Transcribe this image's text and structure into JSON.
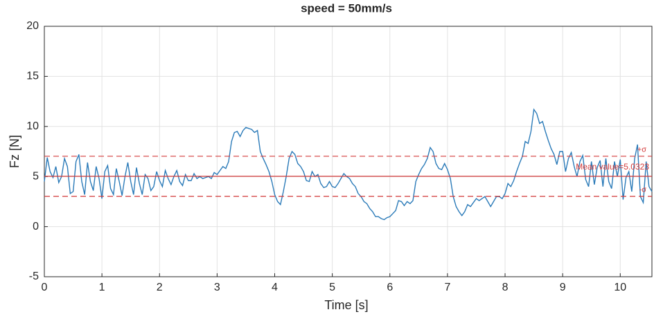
{
  "chart_data": {
    "type": "line",
    "title": "speed = 50mm/s",
    "xlabel": "Time [s]",
    "ylabel": "Fz [N]",
    "x": [
      0,
      0.05,
      0.1,
      0.15,
      0.2,
      0.25,
      0.3,
      0.35,
      0.4,
      0.45,
      0.5,
      0.55,
      0.6,
      0.65,
      0.7,
      0.75,
      0.8,
      0.85,
      0.9,
      0.95,
      1,
      1.05,
      1.1,
      1.15,
      1.2,
      1.25,
      1.3,
      1.35,
      1.4,
      1.45,
      1.5,
      1.55,
      1.6,
      1.65,
      1.7,
      1.75,
      1.8,
      1.85,
      1.9,
      1.95,
      2,
      2.05,
      2.1,
      2.15,
      2.2,
      2.25,
      2.3,
      2.35,
      2.4,
      2.45,
      2.5,
      2.55,
      2.6,
      2.65,
      2.7,
      2.75,
      2.8,
      2.85,
      2.9,
      2.95,
      3,
      3.05,
      3.1,
      3.15,
      3.2,
      3.25,
      3.3,
      3.35,
      3.4,
      3.45,
      3.5,
      3.55,
      3.6,
      3.65,
      3.7,
      3.75,
      3.8,
      3.85,
      3.9,
      3.95,
      4,
      4.05,
      4.1,
      4.15,
      4.2,
      4.25,
      4.3,
      4.35,
      4.4,
      4.45,
      4.5,
      4.55,
      4.6,
      4.65,
      4.7,
      4.75,
      4.8,
      4.85,
      4.9,
      4.95,
      5,
      5.05,
      5.1,
      5.15,
      5.2,
      5.25,
      5.3,
      5.35,
      5.4,
      5.45,
      5.5,
      5.55,
      5.6,
      5.65,
      5.7,
      5.75,
      5.8,
      5.85,
      5.9,
      5.95,
      6,
      6.05,
      6.1,
      6.15,
      6.2,
      6.25,
      6.3,
      6.35,
      6.4,
      6.45,
      6.5,
      6.55,
      6.6,
      6.65,
      6.7,
      6.75,
      6.8,
      6.85,
      6.9,
      6.95,
      7,
      7.05,
      7.1,
      7.15,
      7.2,
      7.25,
      7.3,
      7.35,
      7.4,
      7.45,
      7.5,
      7.55,
      7.6,
      7.65,
      7.7,
      7.75,
      7.8,
      7.85,
      7.9,
      7.95,
      8,
      8.05,
      8.1,
      8.15,
      8.2,
      8.25,
      8.3,
      8.35,
      8.4,
      8.45,
      8.5,
      8.55,
      8.6,
      8.65,
      8.7,
      8.75,
      8.8,
      8.85,
      8.9,
      8.95,
      9,
      9.05,
      9.1,
      9.15,
      9.2,
      9.25,
      9.3,
      9.35,
      9.4,
      9.45,
      9.5,
      9.55,
      9.6,
      9.65,
      9.7,
      9.75,
      9.8,
      9.85,
      9.9,
      9.95,
      10,
      10.05,
      10.1,
      10.15,
      10.2,
      10.25,
      10.3,
      10.35,
      10.4,
      10.45,
      10.5,
      10.55
    ],
    "series": [
      {
        "color": "#2a7ab8",
        "values": [
          4.5,
          6.9,
          5.5,
          4.9,
          6.0,
          4.4,
          5.0,
          6.8,
          6.0,
          3.3,
          3.5,
          6.5,
          7.2,
          4.5,
          3.2,
          6.4,
          4.5,
          3.6,
          6.0,
          4.8,
          2.8,
          5.5,
          6.1,
          3.8,
          3.2,
          5.8,
          4.5,
          3.1,
          5.0,
          6.4,
          4.5,
          3.2,
          5.9,
          4.3,
          3.2,
          5.2,
          4.8,
          3.6,
          4.0,
          5.5,
          4.6,
          4.0,
          5.6,
          4.8,
          4.2,
          5.0,
          5.6,
          4.5,
          4.1,
          5.2,
          4.6,
          4.6,
          5.3,
          4.8,
          5.0,
          4.8,
          4.9,
          5.0,
          4.8,
          5.4,
          5.2,
          5.6,
          6.0,
          5.8,
          6.5,
          8.5,
          9.4,
          9.5,
          9.0,
          9.6,
          9.9,
          9.8,
          9.7,
          9.4,
          9.6,
          7.5,
          6.8,
          6.2,
          5.5,
          4.5,
          3.2,
          2.5,
          2.2,
          3.5,
          5.0,
          6.8,
          7.5,
          7.2,
          6.3,
          6.0,
          5.5,
          4.6,
          4.5,
          5.5,
          5.0,
          5.2,
          4.3,
          3.9,
          4.0,
          4.5,
          4.0,
          3.9,
          4.3,
          4.8,
          5.3,
          5.0,
          4.8,
          4.3,
          4.0,
          3.3,
          3.0,
          2.5,
          2.3,
          1.8,
          1.5,
          1.0,
          1.0,
          0.8,
          0.7,
          0.9,
          1.0,
          1.3,
          1.6,
          2.6,
          2.5,
          2.1,
          2.5,
          2.3,
          2.6,
          4.5,
          5.2,
          5.8,
          6.2,
          6.8,
          7.9,
          7.5,
          6.3,
          5.8,
          5.7,
          6.3,
          5.7,
          4.8,
          3.0,
          2.0,
          1.5,
          1.1,
          1.5,
          2.2,
          2.0,
          2.4,
          2.8,
          2.6,
          2.8,
          3.0,
          2.5,
          2.0,
          2.5,
          3.0,
          3.0,
          2.8,
          3.3,
          4.3,
          4.0,
          4.6,
          5.5,
          6.3,
          7.0,
          8.5,
          8.3,
          9.5,
          11.7,
          11.3,
          10.3,
          10.5,
          9.5,
          8.6,
          7.8,
          7.2,
          6.2,
          7.5,
          7.5,
          5.5,
          6.8,
          7.4,
          6.0,
          5.0,
          6.5,
          7.1,
          4.7,
          4.0,
          6.5,
          4.2,
          5.9,
          6.6,
          4.0,
          6.8,
          4.5,
          3.8,
          6.5,
          5.0,
          6.7,
          2.7,
          4.9,
          5.5,
          3.5,
          6.8,
          8.2,
          3.0,
          2.4,
          6.5,
          4.0,
          3.5
        ]
      }
    ],
    "reference_lines": [
      {
        "value": 7.03,
        "label": "+σ",
        "color": "#d33a3a",
        "style": "dashed"
      },
      {
        "value": 5.0323,
        "label": "Mean value=5.0323",
        "color": "#d33a3a",
        "style": "solid"
      },
      {
        "value": 3.03,
        "label": "-σ",
        "color": "#d33a3a",
        "style": "dashed"
      }
    ],
    "xlim": [
      0,
      10.55
    ],
    "ylim": [
      -5,
      20
    ],
    "xticks": [
      0,
      1,
      2,
      3,
      4,
      5,
      6,
      7,
      8,
      9,
      10
    ],
    "yticks": [
      -5,
      0,
      5,
      10,
      15,
      20
    ],
    "grid": true
  }
}
